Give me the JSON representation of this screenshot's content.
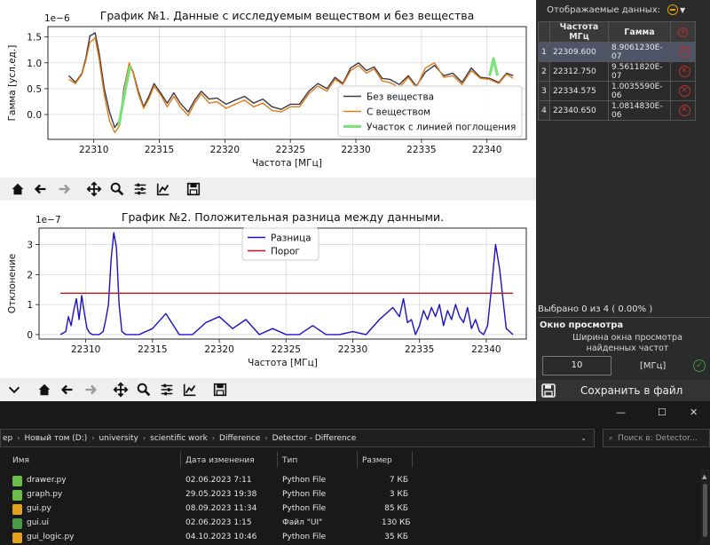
{
  "chart_data": [
    {
      "type": "line",
      "title": "График №1. Данные с исследуемым веществом и без вещества",
      "xlabel": "Частота [МГц]",
      "ylabel": "Гамма [усл.ед.]",
      "y_offset_label": "1e−6",
      "xlim": [
        22306.5,
        22343
      ],
      "ylim": [
        -0.48,
        1.7
      ],
      "x_ticks": [
        22310,
        22315,
        22320,
        22325,
        22330,
        22335,
        22340
      ],
      "y_ticks": [
        0.0,
        0.5,
        1.0,
        1.5
      ],
      "x_tick_labels": [
        "22310",
        "22315",
        "22320",
        "22325",
        "22330",
        "22335",
        "22340"
      ],
      "y_tick_labels": [
        "0.0",
        "0.5",
        "1.0",
        "1.5"
      ],
      "grid": true,
      "legend_position": "lower-right",
      "series": [
        {
          "name": "Без вещества",
          "color": "#3a3a46",
          "x": [
            22308.1,
            22308.6,
            22309.1,
            22309.4,
            22309.7,
            22310.1,
            22310.4,
            22310.8,
            22311.2,
            22311.6,
            22312.0,
            22312.3,
            22312.7,
            22313.0,
            22313.4,
            22313.8,
            22314.2,
            22314.6,
            22315.1,
            22315.6,
            22316.1,
            22316.6,
            22317.2,
            22317.7,
            22318.2,
            22318.8,
            22319.4,
            22320.1,
            22320.8,
            22321.5,
            22322.2,
            22322.9,
            22323.6,
            22324.3,
            22325.0,
            22325.7,
            22326.4,
            22327.1,
            22327.8,
            22328.4,
            22329.0,
            22329.6,
            22330.2,
            22330.8,
            22331.4,
            22332.0,
            22332.6,
            22333.3,
            22334.0,
            22334.6,
            22335.3,
            22336.0,
            22336.7,
            22337.4,
            22338.1,
            22338.8,
            22339.5,
            22340.2,
            22340.9,
            22341.5,
            22342.0
          ],
          "y": [
            0.75,
            0.62,
            0.8,
            1.1,
            1.52,
            1.58,
            1.2,
            0.5,
            0.05,
            -0.25,
            -0.1,
            0.5,
            0.98,
            0.82,
            0.45,
            0.15,
            0.35,
            0.6,
            0.42,
            0.22,
            0.42,
            0.22,
            0.05,
            0.28,
            0.45,
            0.3,
            0.32,
            0.2,
            0.28,
            0.35,
            0.22,
            0.3,
            0.15,
            0.1,
            0.2,
            0.2,
            0.45,
            0.6,
            0.5,
            0.72,
            0.6,
            0.9,
            1.0,
            0.85,
            0.92,
            0.7,
            0.68,
            0.58,
            0.75,
            0.55,
            0.82,
            0.95,
            0.75,
            0.8,
            0.62,
            0.9,
            0.72,
            0.7,
            0.62,
            0.8,
            0.75
          ]
        },
        {
          "name": "С веществом",
          "color": "#e07b1a",
          "x": [
            22308.1,
            22308.6,
            22309.1,
            22309.4,
            22309.7,
            22310.1,
            22310.4,
            22310.8,
            22311.2,
            22311.6,
            22312.0,
            22312.3,
            22312.7,
            22313.0,
            22313.4,
            22313.8,
            22314.2,
            22314.6,
            22315.1,
            22315.6,
            22316.1,
            22316.6,
            22317.2,
            22317.7,
            22318.2,
            22318.8,
            22319.4,
            22320.1,
            22320.8,
            22321.5,
            22322.2,
            22322.9,
            22323.6,
            22324.3,
            22325.0,
            22325.7,
            22326.4,
            22327.1,
            22327.8,
            22328.4,
            22329.0,
            22329.6,
            22330.2,
            22330.8,
            22331.4,
            22332.0,
            22332.6,
            22333.3,
            22334.0,
            22334.6,
            22335.3,
            22336.0,
            22336.7,
            22337.4,
            22338.1,
            22338.8,
            22339.5,
            22340.2,
            22340.9,
            22341.5,
            22342.0
          ],
          "y": [
            0.68,
            0.6,
            0.78,
            1.05,
            1.4,
            1.48,
            1.08,
            0.38,
            -0.12,
            -0.35,
            -0.2,
            0.45,
            1.0,
            0.8,
            0.4,
            0.12,
            0.3,
            0.55,
            0.38,
            0.15,
            0.35,
            0.15,
            -0.02,
            0.22,
            0.4,
            0.22,
            0.25,
            0.12,
            0.2,
            0.28,
            0.15,
            0.22,
            0.08,
            0.05,
            0.15,
            0.15,
            0.4,
            0.55,
            0.45,
            0.68,
            0.58,
            0.85,
            0.95,
            0.8,
            0.88,
            0.65,
            0.62,
            0.52,
            0.72,
            0.52,
            0.9,
            1.0,
            0.72,
            0.75,
            0.58,
            0.85,
            0.7,
            0.68,
            0.6,
            0.78,
            0.7
          ]
        },
        {
          "name": "Участок с линией поглощения",
          "color": "#7de07d",
          "segments": [
            {
              "x": [
                22311.9,
                22312.2,
                22312.5,
                22312.8
              ],
              "y": [
                -0.22,
                0.2,
                0.6,
                0.95
              ]
            },
            {
              "x": [
                22340.2,
                22340.5,
                22340.8
              ],
              "y": [
                0.75,
                1.08,
                0.75
              ]
            }
          ]
        }
      ]
    },
    {
      "type": "line",
      "title": "График №2. Положительная разница между данными.",
      "xlabel": "Частота [МГц]",
      "ylabel": "Отклонение",
      "y_offset_label": "1e−7",
      "xlim": [
        22306.5,
        22343
      ],
      "ylim": [
        -0.15,
        3.55
      ],
      "x_ticks": [
        22310,
        22315,
        22320,
        22325,
        22330,
        22335,
        22340
      ],
      "y_ticks": [
        0,
        1,
        2,
        3
      ],
      "x_tick_labels": [
        "22310",
        "22315",
        "22320",
        "22325",
        "22330",
        "22335",
        "22340"
      ],
      "y_tick_labels": [
        "0",
        "1",
        "2",
        "3"
      ],
      "grid": true,
      "legend_position": "top-center",
      "series": [
        {
          "name": "Разница",
          "color": "#1a10c8",
          "x": [
            22308.1,
            22308.5,
            22308.7,
            22308.9,
            22309.1,
            22309.3,
            22309.5,
            22309.7,
            22309.9,
            22310.1,
            22310.3,
            22310.5,
            22310.7,
            22311.0,
            22311.3,
            22311.5,
            22311.7,
            22311.9,
            22312.1,
            22312.3,
            22312.5,
            22312.7,
            22313.0,
            22314.0,
            22315.0,
            22316.0,
            22317.0,
            22318.0,
            22319.0,
            22320.0,
            22321.0,
            22322.0,
            22323.0,
            22324.0,
            22325.0,
            22326.0,
            22327.0,
            22328.0,
            22329.0,
            22330.0,
            22331.0,
            22332.0,
            22333.0,
            22333.5,
            22333.8,
            22334.1,
            22334.4,
            22334.7,
            22335.0,
            22335.3,
            22335.6,
            22335.9,
            22336.2,
            22336.5,
            22336.8,
            22337.1,
            22337.4,
            22337.7,
            22338.0,
            22338.3,
            22338.6,
            22338.9,
            22339.2,
            22339.5,
            22339.8,
            22340.1,
            22340.4,
            22340.7,
            22341.0,
            22341.5,
            22342.0
          ],
          "y": [
            0,
            0.1,
            0.6,
            0.3,
            0.8,
            1.2,
            0.5,
            1.3,
            0.7,
            0.2,
            0.05,
            0,
            0,
            0,
            0.1,
            0.5,
            1.0,
            2.5,
            3.4,
            2.9,
            1.0,
            0.1,
            0,
            0,
            0.2,
            0.7,
            0,
            0,
            0.4,
            0.6,
            0.2,
            0.5,
            0,
            0.2,
            0,
            0,
            0.3,
            0,
            0,
            0.1,
            0,
            0.5,
            0.9,
            0.6,
            1.2,
            0.4,
            0.5,
            0,
            0.3,
            0.8,
            0.5,
            0.9,
            0.6,
            1.0,
            0.3,
            0.8,
            0.5,
            1.0,
            0.6,
            0.4,
            0.9,
            0.2,
            0.5,
            0.1,
            0,
            0.3,
            1.6,
            3.0,
            2.2,
            0.2,
            0
          ]
        },
        {
          "name": "Порог",
          "color": "#d01010",
          "x": [
            22308.1,
            22342.0
          ],
          "y": [
            1.38,
            1.38
          ]
        }
      ]
    }
  ],
  "plot1_toolbar": {
    "icons": [
      "home-icon",
      "back-arrow-icon",
      "forward-arrow-icon",
      "pan-icon",
      "zoom-icon",
      "configure-icon",
      "axes-edit-icon",
      "save-icon"
    ]
  },
  "plot2_toolbar": {
    "icons": [
      "chevron-down-icon",
      "home-icon",
      "back-arrow-icon",
      "forward-arrow-icon",
      "pan-icon",
      "zoom-icon",
      "configure-icon",
      "axes-edit-icon",
      "save-icon"
    ]
  },
  "right_panel": {
    "display_label": "Отображаемые данных:",
    "table": {
      "headers": [
        "Частота МГц",
        "Гамма"
      ],
      "rows": [
        {
          "num": "1",
          "freq": "22309.600",
          "gamma": "8.9061230E-07",
          "selected": true
        },
        {
          "num": "2",
          "freq": "22312.750",
          "gamma": "9.5611820E-07",
          "selected": false
        },
        {
          "num": "3",
          "freq": "22334.575",
          "gamma": "1.0035590E-06",
          "selected": false
        },
        {
          "num": "4",
          "freq": "22340.650",
          "gamma": "1.0814830E-06",
          "selected": false
        }
      ]
    },
    "selected_info": "Выбрано 0 из 4 ( 0.00% )",
    "window_title": "Окно просмотра",
    "window_desc": "Ширина окна просмотра найденных частот",
    "window_value": "10",
    "window_unit": "[МГц]",
    "save_label": "Сохранить в файл"
  },
  "explorer": {
    "address": [
      "ер",
      "Новый том (D:)",
      "university",
      "scientific work",
      "Difference",
      "Detector - Difference"
    ],
    "search_placeholder": "Поиск в: Detector...",
    "columns": {
      "name": "Имя",
      "date": "Дата изменения",
      "type": "Тип",
      "size": "Размер"
    },
    "rows": [
      {
        "name": "drawer.py",
        "date": "02.06.2023 7:11",
        "type": "Python File",
        "size": "7 КБ",
        "icon_color": "#6bbd4b"
      },
      {
        "name": "graph.py",
        "date": "29.05.2023 19:38",
        "type": "Python File",
        "size": "3 КБ",
        "icon_color": "#6bbd4b"
      },
      {
        "name": "gui.py",
        "date": "08.09.2023 11:34",
        "type": "Python File",
        "size": "85 КБ",
        "icon_color": "#e0a020"
      },
      {
        "name": "gui.ui",
        "date": "02.06.2023 1:15",
        "type": "Файл \"UI\"",
        "size": "130 КБ",
        "icon_color": "#4a9a4a"
      },
      {
        "name": "gui_logic.py",
        "date": "04.10.2023 10:46",
        "type": "Python File",
        "size": "35 КБ",
        "icon_color": "#e0a020"
      }
    ]
  }
}
